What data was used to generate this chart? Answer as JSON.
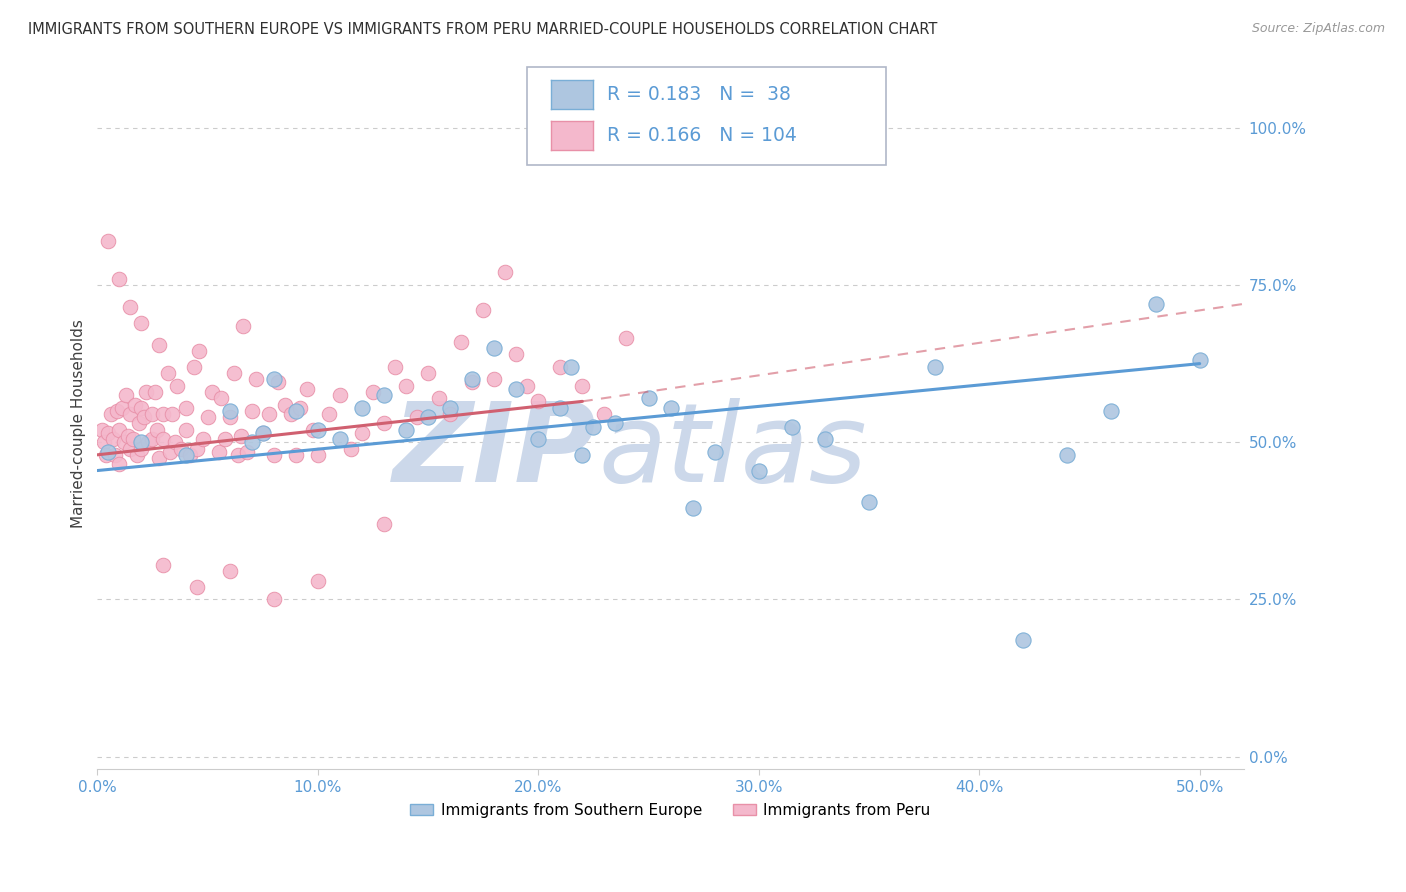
{
  "title": "IMMIGRANTS FROM SOUTHERN EUROPE VS IMMIGRANTS FROM PERU MARRIED-COUPLE HOUSEHOLDS CORRELATION CHART",
  "source": "Source: ZipAtlas.com",
  "ylabel": "Married-couple Households",
  "xlabel_ticks": [
    "0.0%",
    "10.0%",
    "20.0%",
    "30.0%",
    "40.0%",
    "50.0%"
  ],
  "xlabel_vals": [
    0.0,
    0.1,
    0.2,
    0.3,
    0.4,
    0.5
  ],
  "ylabel_ticks": [
    "100.0%",
    "75.0%",
    "50.0%",
    "25.0%",
    "0.0%"
  ],
  "ylabel_vals": [
    1.0,
    0.75,
    0.5,
    0.25,
    0.0
  ],
  "xlim": [
    0.0,
    0.52
  ],
  "ylim": [
    -0.02,
    1.08
  ],
  "legend1_label": "Immigrants from Southern Europe",
  "legend2_label": "Immigrants from Peru",
  "R1": 0.183,
  "N1": 38,
  "R2": 0.166,
  "N2": 104,
  "color1": "#aec6e0",
  "color1_edge": "#7aaed6",
  "color2": "#f4b8cc",
  "color2_edge": "#e890a8",
  "trendline1_color": "#5b9bd5",
  "trendline2_color": "#d06070",
  "trendline2_dash_color": "#e0a0b0",
  "watermark_color": "#ccd8ea",
  "grid_color": "#cccccc",
  "title_color": "#303030",
  "tick_color": "#5b9bd5",
  "blue_scatter_x": [
    0.005,
    0.02,
    0.04,
    0.06,
    0.07,
    0.075,
    0.08,
    0.09,
    0.1,
    0.11,
    0.12,
    0.13,
    0.14,
    0.15,
    0.16,
    0.17,
    0.18,
    0.19,
    0.2,
    0.21,
    0.215,
    0.22,
    0.225,
    0.235,
    0.25,
    0.26,
    0.27,
    0.28,
    0.3,
    0.315,
    0.33,
    0.35,
    0.38,
    0.42,
    0.44,
    0.46,
    0.48,
    0.5
  ],
  "blue_scatter_y": [
    0.485,
    0.5,
    0.48,
    0.55,
    0.5,
    0.515,
    0.6,
    0.55,
    0.52,
    0.505,
    0.555,
    0.575,
    0.52,
    0.54,
    0.555,
    0.6,
    0.65,
    0.585,
    0.505,
    0.555,
    0.62,
    0.48,
    0.525,
    0.53,
    0.57,
    0.555,
    0.395,
    0.485,
    0.455,
    0.525,
    0.505,
    0.405,
    0.62,
    0.185,
    0.48,
    0.55,
    0.72,
    0.63
  ],
  "pink_scatter_x": [
    0.002,
    0.003,
    0.004,
    0.005,
    0.006,
    0.007,
    0.008,
    0.009,
    0.01,
    0.01,
    0.011,
    0.012,
    0.013,
    0.014,
    0.015,
    0.015,
    0.016,
    0.017,
    0.018,
    0.019,
    0.02,
    0.02,
    0.021,
    0.022,
    0.023,
    0.025,
    0.025,
    0.026,
    0.027,
    0.028,
    0.028,
    0.03,
    0.03,
    0.032,
    0.033,
    0.034,
    0.035,
    0.036,
    0.038,
    0.04,
    0.04,
    0.042,
    0.044,
    0.045,
    0.046,
    0.048,
    0.05,
    0.052,
    0.055,
    0.056,
    0.058,
    0.06,
    0.062,
    0.064,
    0.065,
    0.066,
    0.068,
    0.07,
    0.072,
    0.075,
    0.078,
    0.08,
    0.082,
    0.085,
    0.088,
    0.09,
    0.092,
    0.095,
    0.098,
    0.1,
    0.105,
    0.11,
    0.115,
    0.12,
    0.125,
    0.13,
    0.135,
    0.14,
    0.145,
    0.15,
    0.155,
    0.16,
    0.165,
    0.17,
    0.175,
    0.18,
    0.185,
    0.19,
    0.195,
    0.2,
    0.21,
    0.22,
    0.23,
    0.24,
    0.005,
    0.01,
    0.015,
    0.02,
    0.03,
    0.045,
    0.06,
    0.08,
    0.1,
    0.13
  ],
  "pink_scatter_y": [
    0.52,
    0.5,
    0.48,
    0.515,
    0.545,
    0.505,
    0.48,
    0.55,
    0.52,
    0.465,
    0.555,
    0.5,
    0.575,
    0.51,
    0.49,
    0.545,
    0.505,
    0.56,
    0.48,
    0.53,
    0.555,
    0.49,
    0.54,
    0.58,
    0.5,
    0.505,
    0.545,
    0.58,
    0.52,
    0.475,
    0.655,
    0.505,
    0.545,
    0.61,
    0.485,
    0.545,
    0.5,
    0.59,
    0.49,
    0.52,
    0.555,
    0.48,
    0.62,
    0.49,
    0.645,
    0.505,
    0.54,
    0.58,
    0.485,
    0.57,
    0.505,
    0.54,
    0.61,
    0.48,
    0.51,
    0.685,
    0.485,
    0.55,
    0.6,
    0.515,
    0.545,
    0.48,
    0.595,
    0.56,
    0.545,
    0.48,
    0.555,
    0.585,
    0.52,
    0.48,
    0.545,
    0.575,
    0.49,
    0.515,
    0.58,
    0.53,
    0.62,
    0.59,
    0.54,
    0.61,
    0.57,
    0.545,
    0.66,
    0.595,
    0.71,
    0.6,
    0.77,
    0.64,
    0.59,
    0.565,
    0.62,
    0.59,
    0.545,
    0.665,
    0.82,
    0.76,
    0.715,
    0.69,
    0.305,
    0.27,
    0.295,
    0.25,
    0.28,
    0.37
  ],
  "blue_trendline": [
    0.0,
    0.5,
    0.455,
    0.625
  ],
  "pink_solid_trendline": [
    0.0,
    0.22,
    0.48,
    0.565
  ],
  "pink_dash_trendline": [
    0.22,
    0.52,
    0.565,
    0.72
  ]
}
